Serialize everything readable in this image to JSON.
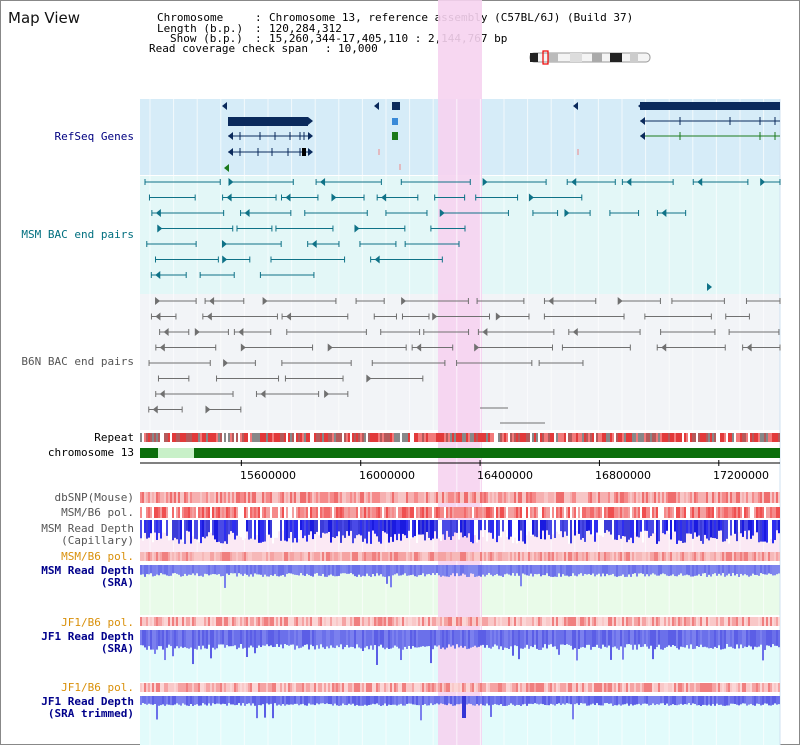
{
  "title": "Map View",
  "info": {
    "chromosome_label": "Chromosome",
    "chromosome_value": "Chromosome 13, reference assembly (C57BL/6J) (Build 37)",
    "length_label": "Length (b.p.)",
    "length_value": "120,284,312",
    "show_label": "Show (b.p.)",
    "show_value": "15,260,344-17,405,110 : 2,144,767 bp",
    "coverage_label": "Read coverage check span",
    "coverage_value": "10,000"
  },
  "tracks": {
    "refseq": "RefSeq Genes",
    "msm_bac": "MSM BAC end pairs",
    "b6n_bac": "B6N BAC end pairs",
    "repeat": "Repeat",
    "chromosome": "chromosome 13",
    "dbsnp": "dbSNP(Mouse)",
    "msm_b6_pol_1": "MSM/B6 pol.",
    "msm_read_depth_cap_1": "MSM Read Depth",
    "msm_read_depth_cap_2": "(Capillary)",
    "msm_b6_pol_2": "MSM/B6 pol.",
    "msm_read_depth_sra_1": "MSM Read Depth",
    "msm_read_depth_sra_2": "(SRA)",
    "jf1_b6_pol_1": "JF1/B6 pol.",
    "jf1_read_depth_1": "JF1 Read Depth",
    "jf1_read_depth_2": "(SRA)",
    "jf1_b6_pol_2": "JF1/B6 pol.",
    "jf1_trim_1": "JF1 Read Depth",
    "jf1_trim_2": "(SRA trimmed)"
  },
  "axis": {
    "start_bp": 15260344,
    "end_bp": 17405110,
    "ticks": [
      "15600000",
      "16000000",
      "16400000",
      "16800000",
      "17200000"
    ]
  },
  "colors": {
    "highlight": "#f6d3ef",
    "refseq_bg": "#d6ecf8",
    "msm_bg": "#e3f7f7",
    "b6n_bg": "#f2f4f7",
    "gene": "#0b2a5c",
    "msm_pair": "#0f7287",
    "b6n_pair": "#707070",
    "chrom": "#0b6e0b",
    "depth_blue": "#2222dd",
    "depth_light": "#7b80ee",
    "polymorph": "#f27a7a"
  }
}
